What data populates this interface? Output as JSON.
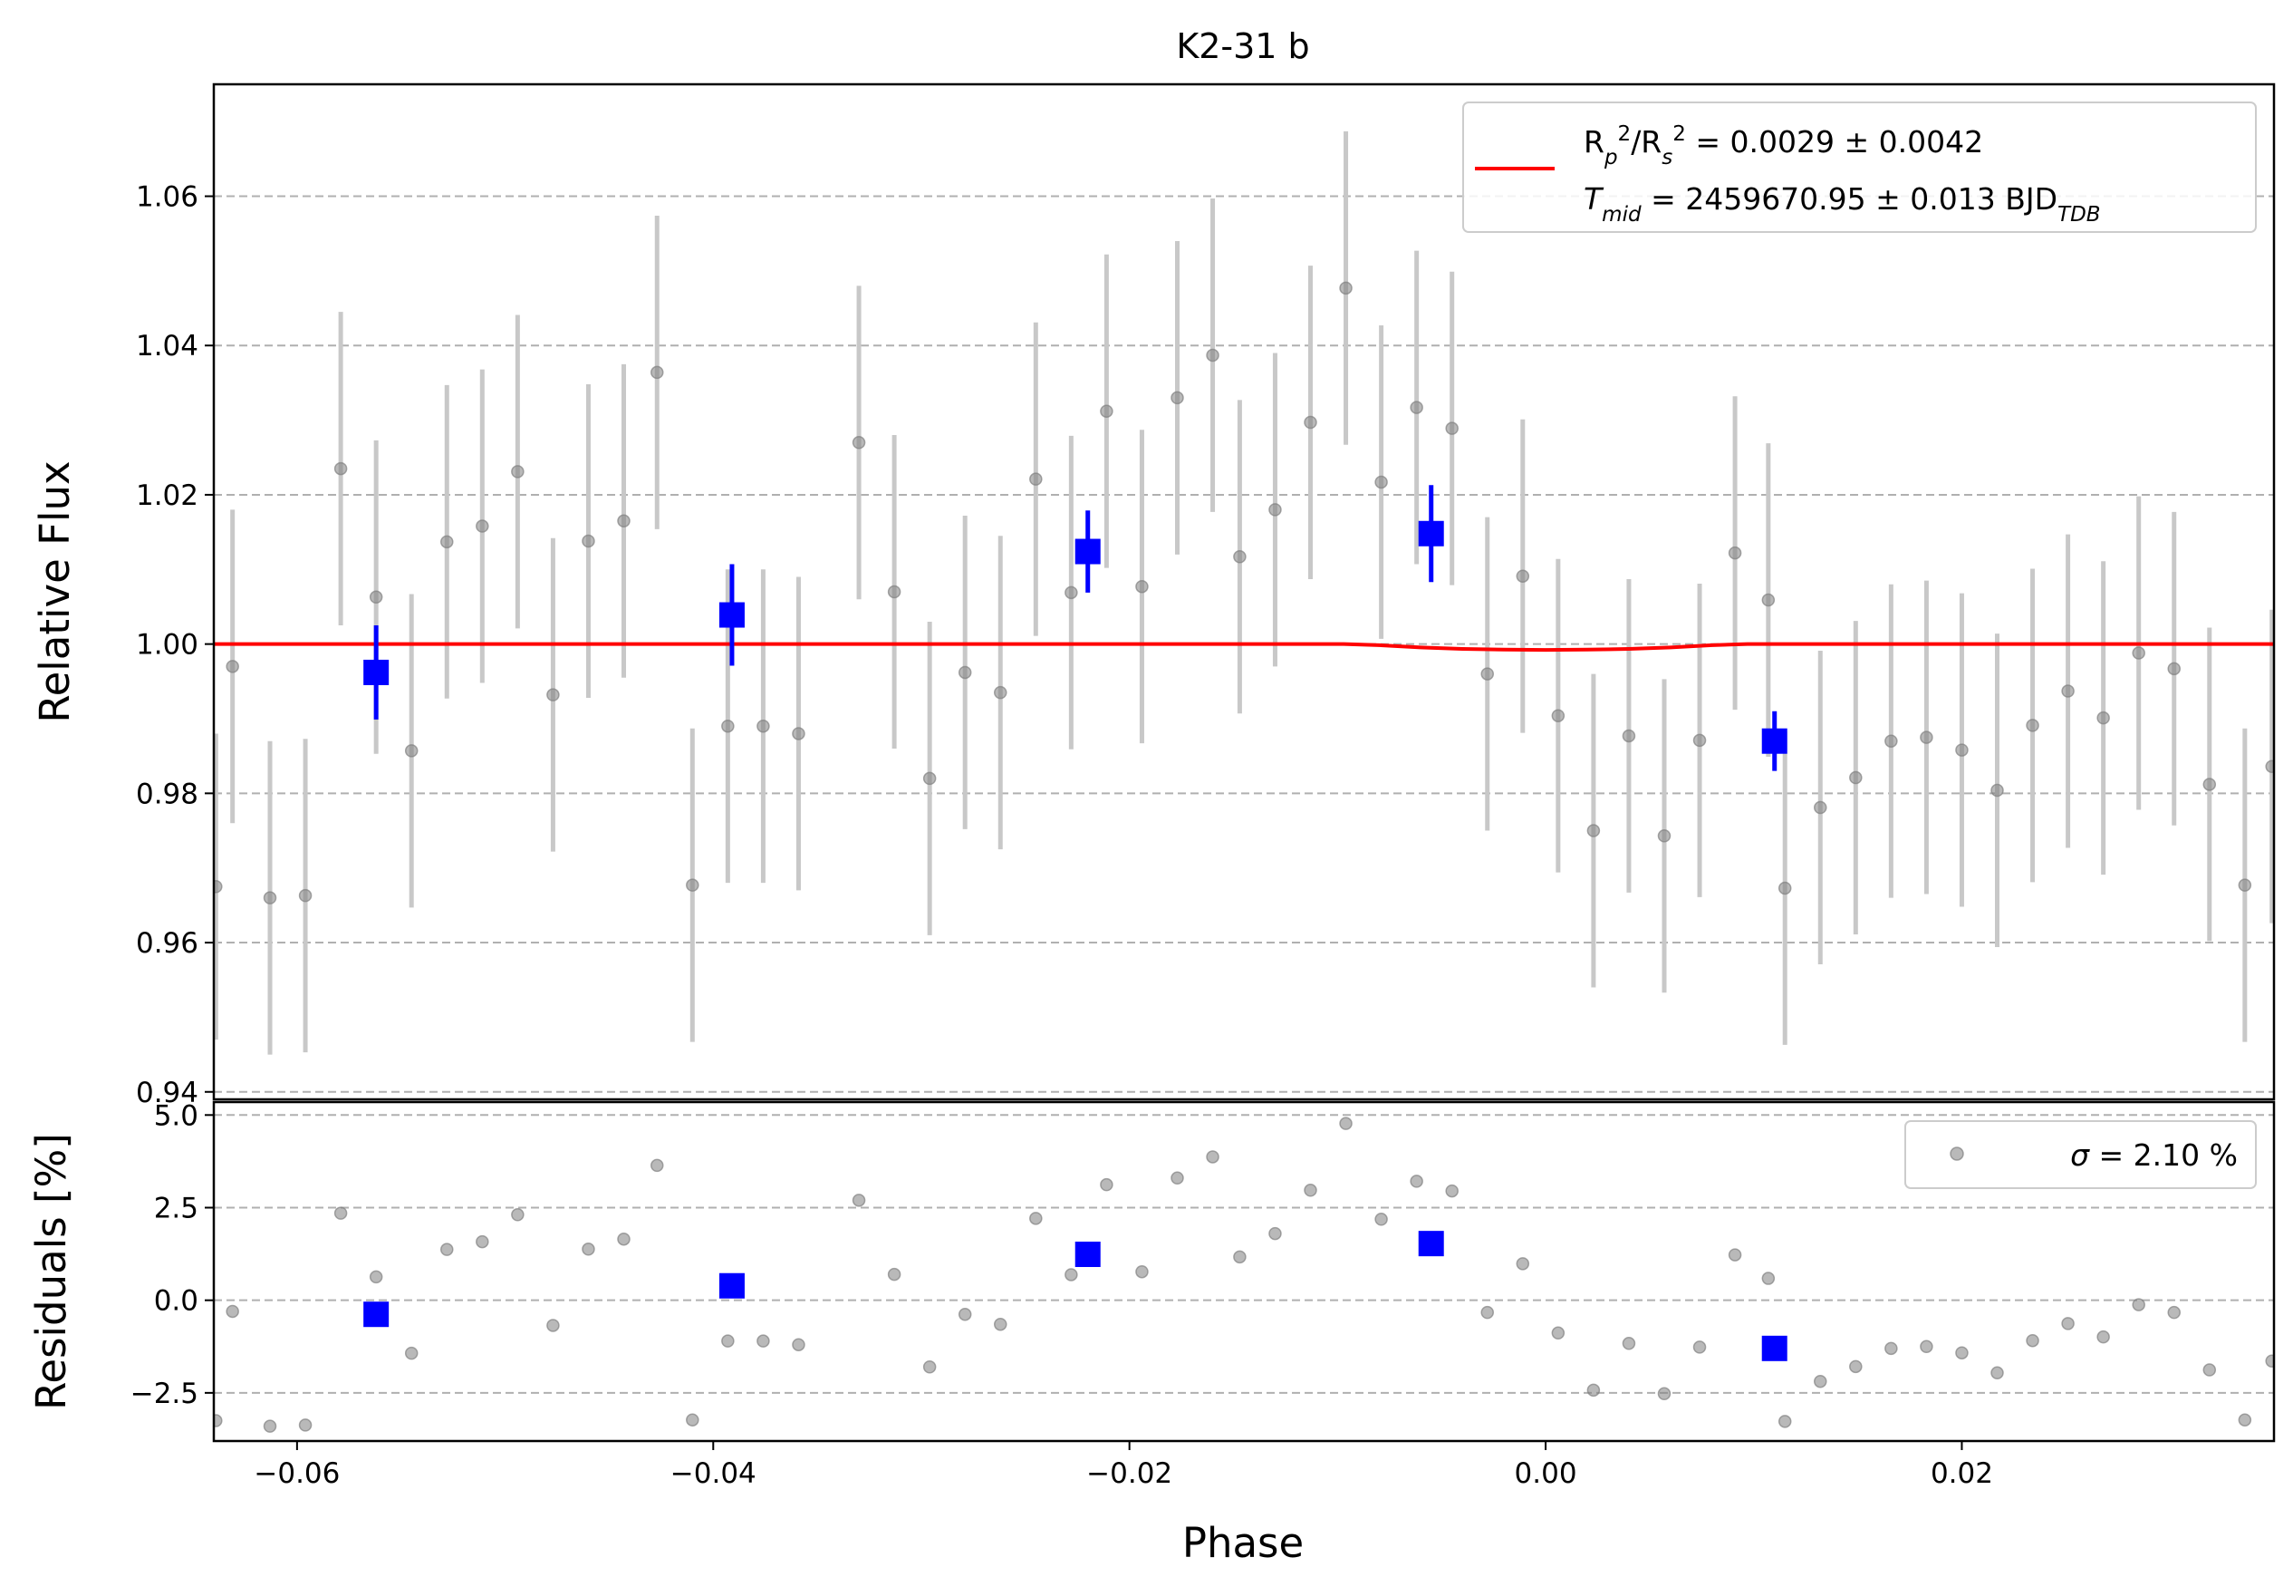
{
  "chart_data": [
    {
      "type": "scatter",
      "title": "K2-31 b",
      "ylabel": "Relative Flux",
      "xlim": [
        -0.064,
        0.035
      ],
      "ylim": [
        0.939,
        1.075
      ],
      "yticks": [
        0.94,
        0.96,
        0.98,
        1.0,
        1.02,
        1.04,
        1.06
      ],
      "ytick_labels": [
        "0.94",
        "0.96",
        "0.98",
        "1.00",
        "1.02",
        "1.04",
        "1.06"
      ],
      "grid": "horizontal dashed",
      "legend": {
        "position": "top-right",
        "entries": [
          "R_p^2/R_s^2 = 0.0029 ± 0.0042",
          "T_mid = 2459670.95 ± 0.013 BJD_TDB"
        ]
      },
      "legend_lines": [
        {
          "parts": [
            {
              "t": "R"
            },
            {
              "t": "p",
              "sub": true,
              "italic": true
            },
            {
              "t": "2",
              "sup": true
            },
            {
              "t": "/R"
            },
            {
              "t": "s",
              "sub": true,
              "italic": true
            },
            {
              "t": "2",
              "sup": true
            },
            {
              "t": " = 0.0029 ± 0.0042"
            }
          ]
        },
        {
          "parts": [
            {
              "t": "T",
              "italic": true
            },
            {
              "t": "mid",
              "sub": true,
              "italic": true
            },
            {
              "t": " = 2459670.95 ± 0.013 BJD"
            },
            {
              "t": "TDB",
              "sub": true,
              "italic": true
            }
          ]
        }
      ],
      "colors": {
        "raw": "#808080",
        "raw_err": "#c8c8c8",
        "binned": "#0000ff",
        "model": "#ff0000",
        "grid": "#b0b0b0"
      },
      "raw_points": [
        {
          "x": -0.0639,
          "y": 0.9675,
          "err": 0.0205
        },
        {
          "x": -0.0631,
          "y": 0.997,
          "err": 0.021
        },
        {
          "x": -0.0613,
          "y": 0.966,
          "err": 0.021
        },
        {
          "x": -0.0596,
          "y": 0.9663,
          "err": 0.021
        },
        {
          "x": -0.0579,
          "y": 1.0235,
          "err": 0.021
        },
        {
          "x": -0.0562,
          "y": 1.0063,
          "err": 0.021
        },
        {
          "x": -0.0545,
          "y": 0.9857,
          "err": 0.021
        },
        {
          "x": -0.0528,
          "y": 1.0137,
          "err": 0.021
        },
        {
          "x": -0.0511,
          "y": 1.0158,
          "err": 0.021
        },
        {
          "x": -0.0494,
          "y": 1.0231,
          "err": 0.021
        },
        {
          "x": -0.0477,
          "y": 0.9932,
          "err": 0.021
        },
        {
          "x": -0.046,
          "y": 1.0138,
          "err": 0.021
        },
        {
          "x": -0.0443,
          "y": 1.0165,
          "err": 0.021
        },
        {
          "x": -0.0427,
          "y": 1.0364,
          "err": 0.021
        },
        {
          "x": -0.041,
          "y": 0.9677,
          "err": 0.021
        },
        {
          "x": -0.0393,
          "y": 0.989,
          "err": 0.021
        },
        {
          "x": -0.0376,
          "y": 0.989,
          "err": 0.021
        },
        {
          "x": -0.0359,
          "y": 0.988,
          "err": 0.021
        },
        {
          "x": -0.033,
          "y": 1.027,
          "err": 0.021
        },
        {
          "x": -0.0313,
          "y": 1.007,
          "err": 0.021
        },
        {
          "x": -0.0296,
          "y": 0.982,
          "err": 0.021
        },
        {
          "x": -0.0279,
          "y": 0.9962,
          "err": 0.021
        },
        {
          "x": -0.0262,
          "y": 0.9935,
          "err": 0.021
        },
        {
          "x": -0.0245,
          "y": 1.0221,
          "err": 0.021
        },
        {
          "x": -0.0228,
          "y": 1.0069,
          "err": 0.021
        },
        {
          "x": -0.0211,
          "y": 1.0312,
          "err": 0.021
        },
        {
          "x": -0.0194,
          "y": 1.0077,
          "err": 0.021
        },
        {
          "x": -0.0177,
          "y": 1.033,
          "err": 0.021
        },
        {
          "x": -0.016,
          "y": 1.0387,
          "err": 0.021
        },
        {
          "x": -0.0147,
          "y": 1.0117,
          "err": 0.021
        },
        {
          "x": -0.013,
          "y": 1.018,
          "err": 0.021
        },
        {
          "x": -0.0113,
          "y": 1.0297,
          "err": 0.021
        },
        {
          "x": -0.0096,
          "y": 1.0477,
          "err": 0.021
        },
        {
          "x": -0.0079,
          "y": 1.0217,
          "err": 0.021
        },
        {
          "x": -0.0062,
          "y": 1.0317,
          "err": 0.021
        },
        {
          "x": -0.0045,
          "y": 1.0289,
          "err": 0.021
        },
        {
          "x": -0.0028,
          "y": 0.996,
          "err": 0.021
        },
        {
          "x": -0.0011,
          "y": 1.0091,
          "err": 0.021
        },
        {
          "x": 0.0006,
          "y": 0.9904,
          "err": 0.021
        },
        {
          "x": 0.0023,
          "y": 0.975,
          "err": 0.021
        },
        {
          "x": 0.004,
          "y": 0.9877,
          "err": 0.021
        },
        {
          "x": 0.0057,
          "y": 0.9743,
          "err": 0.021
        },
        {
          "x": 0.0074,
          "y": 0.9871,
          "err": 0.021
        },
        {
          "x": 0.0091,
          "y": 1.0122,
          "err": 0.021
        },
        {
          "x": 0.0107,
          "y": 1.0059,
          "err": 0.021
        },
        {
          "x": 0.0115,
          "y": 0.9673,
          "err": 0.021
        },
        {
          "x": 0.0132,
          "y": 0.9781,
          "err": 0.021
        },
        {
          "x": 0.0149,
          "y": 0.9821,
          "err": 0.021
        },
        {
          "x": 0.0166,
          "y": 0.987,
          "err": 0.021
        },
        {
          "x": 0.0183,
          "y": 0.9875,
          "err": 0.021
        },
        {
          "x": 0.02,
          "y": 0.9858,
          "err": 0.021
        },
        {
          "x": 0.0217,
          "y": 0.9804,
          "err": 0.021
        },
        {
          "x": 0.0234,
          "y": 0.9891,
          "err": 0.021
        },
        {
          "x": 0.0251,
          "y": 0.9937,
          "err": 0.021
        },
        {
          "x": 0.0268,
          "y": 0.9901,
          "err": 0.021
        },
        {
          "x": 0.0285,
          "y": 0.9988,
          "err": 0.021
        },
        {
          "x": 0.0302,
          "y": 0.9967,
          "err": 0.021
        },
        {
          "x": 0.0319,
          "y": 0.9812,
          "err": 0.021
        },
        {
          "x": 0.0336,
          "y": 0.9677,
          "err": 0.021
        },
        {
          "x": 0.0349,
          "y": 0.9836,
          "err": 0.021
        }
      ],
      "binned_points": [
        {
          "x": -0.0562,
          "y": 0.9962,
          "err": 0.0063
        },
        {
          "x": -0.0391,
          "y": 1.0039,
          "err": 0.0068
        },
        {
          "x": -0.022,
          "y": 1.0124,
          "err": 0.0055
        },
        {
          "x": -0.0055,
          "y": 1.0148,
          "err": 0.0065
        },
        {
          "x": 0.011,
          "y": 0.987,
          "err": 0.004
        }
      ],
      "model": {
        "x": [
          -0.064,
          -0.0097,
          -0.008,
          -0.006,
          -0.004,
          -0.002,
          0.0,
          0.002,
          0.004,
          0.006,
          0.008,
          0.0097,
          0.035
        ],
        "y": [
          1.0,
          1.0,
          0.99985,
          0.99955,
          0.99935,
          0.99925,
          0.99922,
          0.99925,
          0.99935,
          0.99955,
          0.99985,
          1.0,
          1.0
        ]
      }
    },
    {
      "type": "scatter",
      "xlabel": "Phase",
      "ylabel": "Residuals [%]",
      "xlim": [
        -0.064,
        0.035
      ],
      "ylim": [
        -3.8,
        5.35
      ],
      "xticks": [
        -0.06,
        -0.04,
        -0.02,
        0.0,
        0.02
      ],
      "xtick_labels": [
        "−0.06",
        "−0.04",
        "−0.02",
        "0.00",
        "0.02"
      ],
      "yticks": [
        -2.5,
        0.0,
        2.5,
        5.0
      ],
      "ytick_labels": [
        "−2.5",
        "0.0",
        "2.5",
        "5.0"
      ],
      "grid": "horizontal dashed",
      "legend": {
        "position": "top-right",
        "entries": [
          "σ = 2.10 %"
        ]
      },
      "legend_line": {
        "parts": [
          {
            "t": "σ",
            "italic": true
          },
          {
            "t": " = 2.10 %"
          }
        ]
      },
      "derived_from": "raw_points.y - model.y"
    }
  ]
}
